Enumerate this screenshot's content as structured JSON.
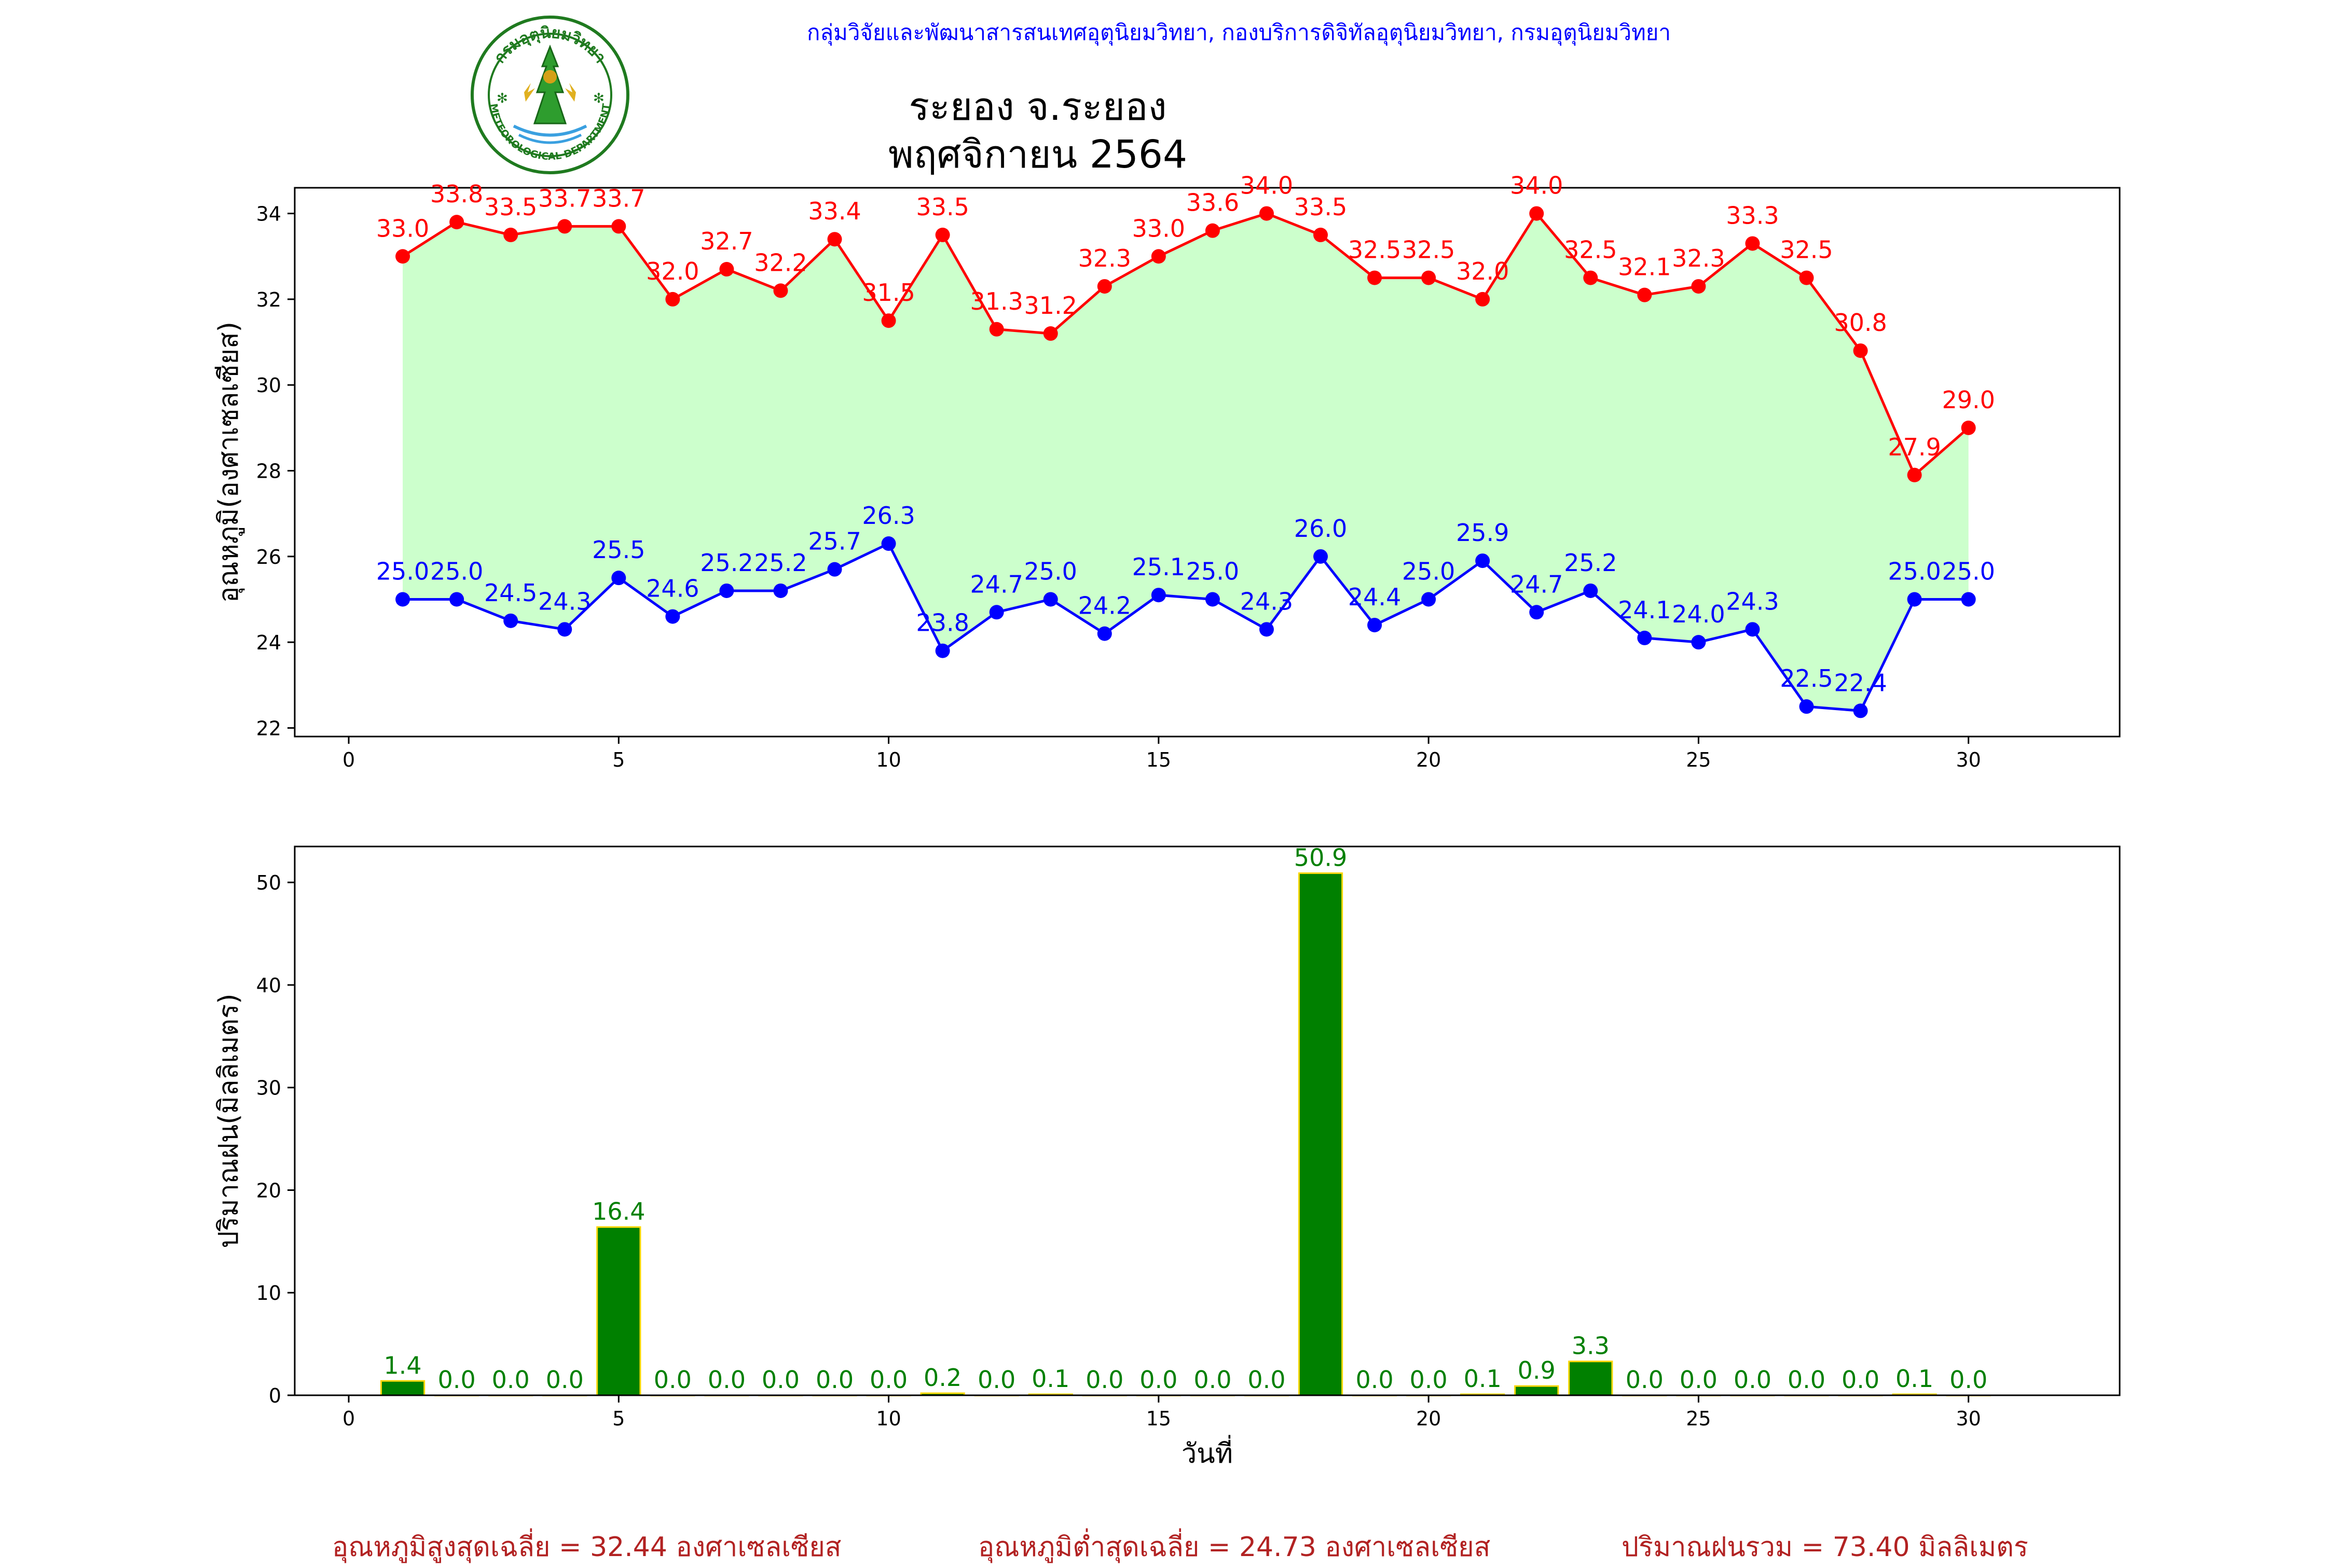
{
  "header": {
    "organization": "กลุ่มวิจัยและพัฒนาสารสนเทศอุตุนิยมวิทยา, กองบริการดิจิทัลอุตุนิยมวิทยา, กรมอุตุนิยมวิทยา",
    "logo_top_text": "กรมอุตุนิยมวิทยา",
    "logo_bottom_text": "METEOROLOGICAL DEPARTMENT",
    "title_line1": "ระยอง จ.ระยอง",
    "title_line2": "พฤศจิกายน 2564"
  },
  "colors": {
    "max_temp": "#ff0000",
    "min_temp": "#0000ff",
    "range_fill": "#ccffcc",
    "rain_bar": "#008000",
    "rain_bar_edge": "#ffd700",
    "rain_label": "#008000",
    "footer_text": "#b22222"
  },
  "chart_data": [
    {
      "type": "line",
      "ylabel": "อุณหภูมิ(องศาเซลเซียส)",
      "xlim": [
        -1,
        32.8
      ],
      "ylim": [
        21.8,
        34.6
      ],
      "xticks": [
        0,
        5,
        10,
        15,
        20,
        25,
        30
      ],
      "yticks": [
        22,
        24,
        26,
        28,
        30,
        32,
        34
      ],
      "x": [
        1,
        2,
        3,
        4,
        5,
        6,
        7,
        8,
        9,
        10,
        11,
        12,
        13,
        14,
        15,
        16,
        17,
        18,
        19,
        20,
        21,
        22,
        23,
        24,
        25,
        26,
        27,
        28,
        29,
        30
      ],
      "series": [
        {
          "key": "max",
          "values": [
            33.0,
            33.8,
            33.5,
            33.7,
            33.7,
            32.0,
            32.7,
            32.2,
            33.4,
            31.5,
            33.5,
            31.3,
            31.2,
            32.3,
            33.0,
            33.6,
            34.0,
            33.5,
            32.5,
            32.5,
            32.0,
            34.0,
            32.5,
            32.1,
            32.3,
            33.3,
            32.5,
            30.8,
            27.9,
            29.0
          ]
        },
        {
          "key": "min",
          "values": [
            25.0,
            25.0,
            24.5,
            24.3,
            25.5,
            24.6,
            25.2,
            25.2,
            25.7,
            26.3,
            23.8,
            24.7,
            25.0,
            24.2,
            25.1,
            25.0,
            24.3,
            26.0,
            24.4,
            25.0,
            25.9,
            24.7,
            25.2,
            24.1,
            24.0,
            24.3,
            22.5,
            22.4,
            25.0,
            25.0
          ]
        }
      ],
      "fill_between": true,
      "grid": false
    },
    {
      "type": "bar",
      "xlabel": "วันที่",
      "ylabel": "ปริมาณฝน(มิลลิเมตร)",
      "xlim": [
        -1,
        32.8
      ],
      "ylim": [
        0,
        53.5
      ],
      "xticks": [
        0,
        5,
        10,
        15,
        20,
        25,
        30
      ],
      "yticks": [
        0,
        10,
        20,
        30,
        40,
        50
      ],
      "x": [
        1,
        2,
        3,
        4,
        5,
        6,
        7,
        8,
        9,
        10,
        11,
        12,
        13,
        14,
        15,
        16,
        17,
        18,
        19,
        20,
        21,
        22,
        23,
        24,
        25,
        26,
        27,
        28,
        29,
        30
      ],
      "values": [
        1.4,
        0.0,
        0.0,
        0.0,
        16.4,
        0.0,
        0.0,
        0.0,
        0.0,
        0.0,
        0.2,
        0.0,
        0.1,
        0.0,
        0.0,
        0.0,
        0.0,
        50.9,
        0.0,
        0.0,
        0.1,
        0.9,
        3.3,
        0.0,
        0.0,
        0.0,
        0.0,
        0.0,
        0.1,
        0.0
      ],
      "grid": false
    }
  ],
  "footer": {
    "avg_max": "อุณหภูมิสูงสุดเฉลี่ย = 32.44 องศาเซลเซียส",
    "avg_min": "อุณหภูมิต่ำสุดเฉลี่ย = 24.73 องศาเซลเซียส",
    "total_rain": "ปริมาณฝนรวม = 73.40 มิลลิเมตร"
  }
}
